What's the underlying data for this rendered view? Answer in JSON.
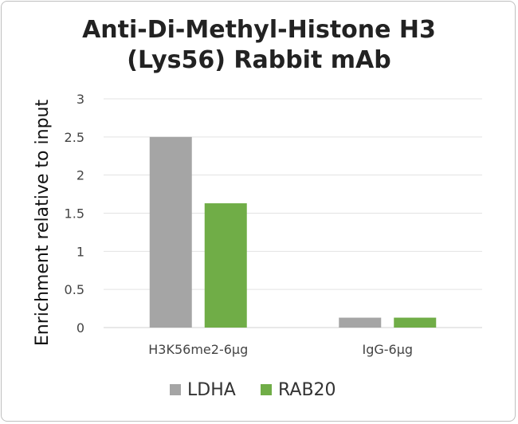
{
  "chart_data": {
    "type": "bar",
    "title_line1": "Anti-Di-Methyl-Histone H3",
    "title_line2": "(Lys56) Rabbit mAb",
    "xlabel": "",
    "ylabel": "Enrichment relative to input",
    "ylim": [
      0,
      3
    ],
    "yticks": [
      "0",
      "0.5",
      "1",
      "1.5",
      "2",
      "2.5",
      "3"
    ],
    "categories": [
      "H3K56me2-6μg",
      "IgG-6μg"
    ],
    "series": [
      {
        "name": "LDHA",
        "color": "#a5a5a5",
        "values": [
          2.5,
          0.13
        ]
      },
      {
        "name": "RAB20",
        "color": "#70ad47",
        "values": [
          1.63,
          0.13
        ]
      }
    ],
    "grid": true,
    "legend_position": "bottom"
  }
}
